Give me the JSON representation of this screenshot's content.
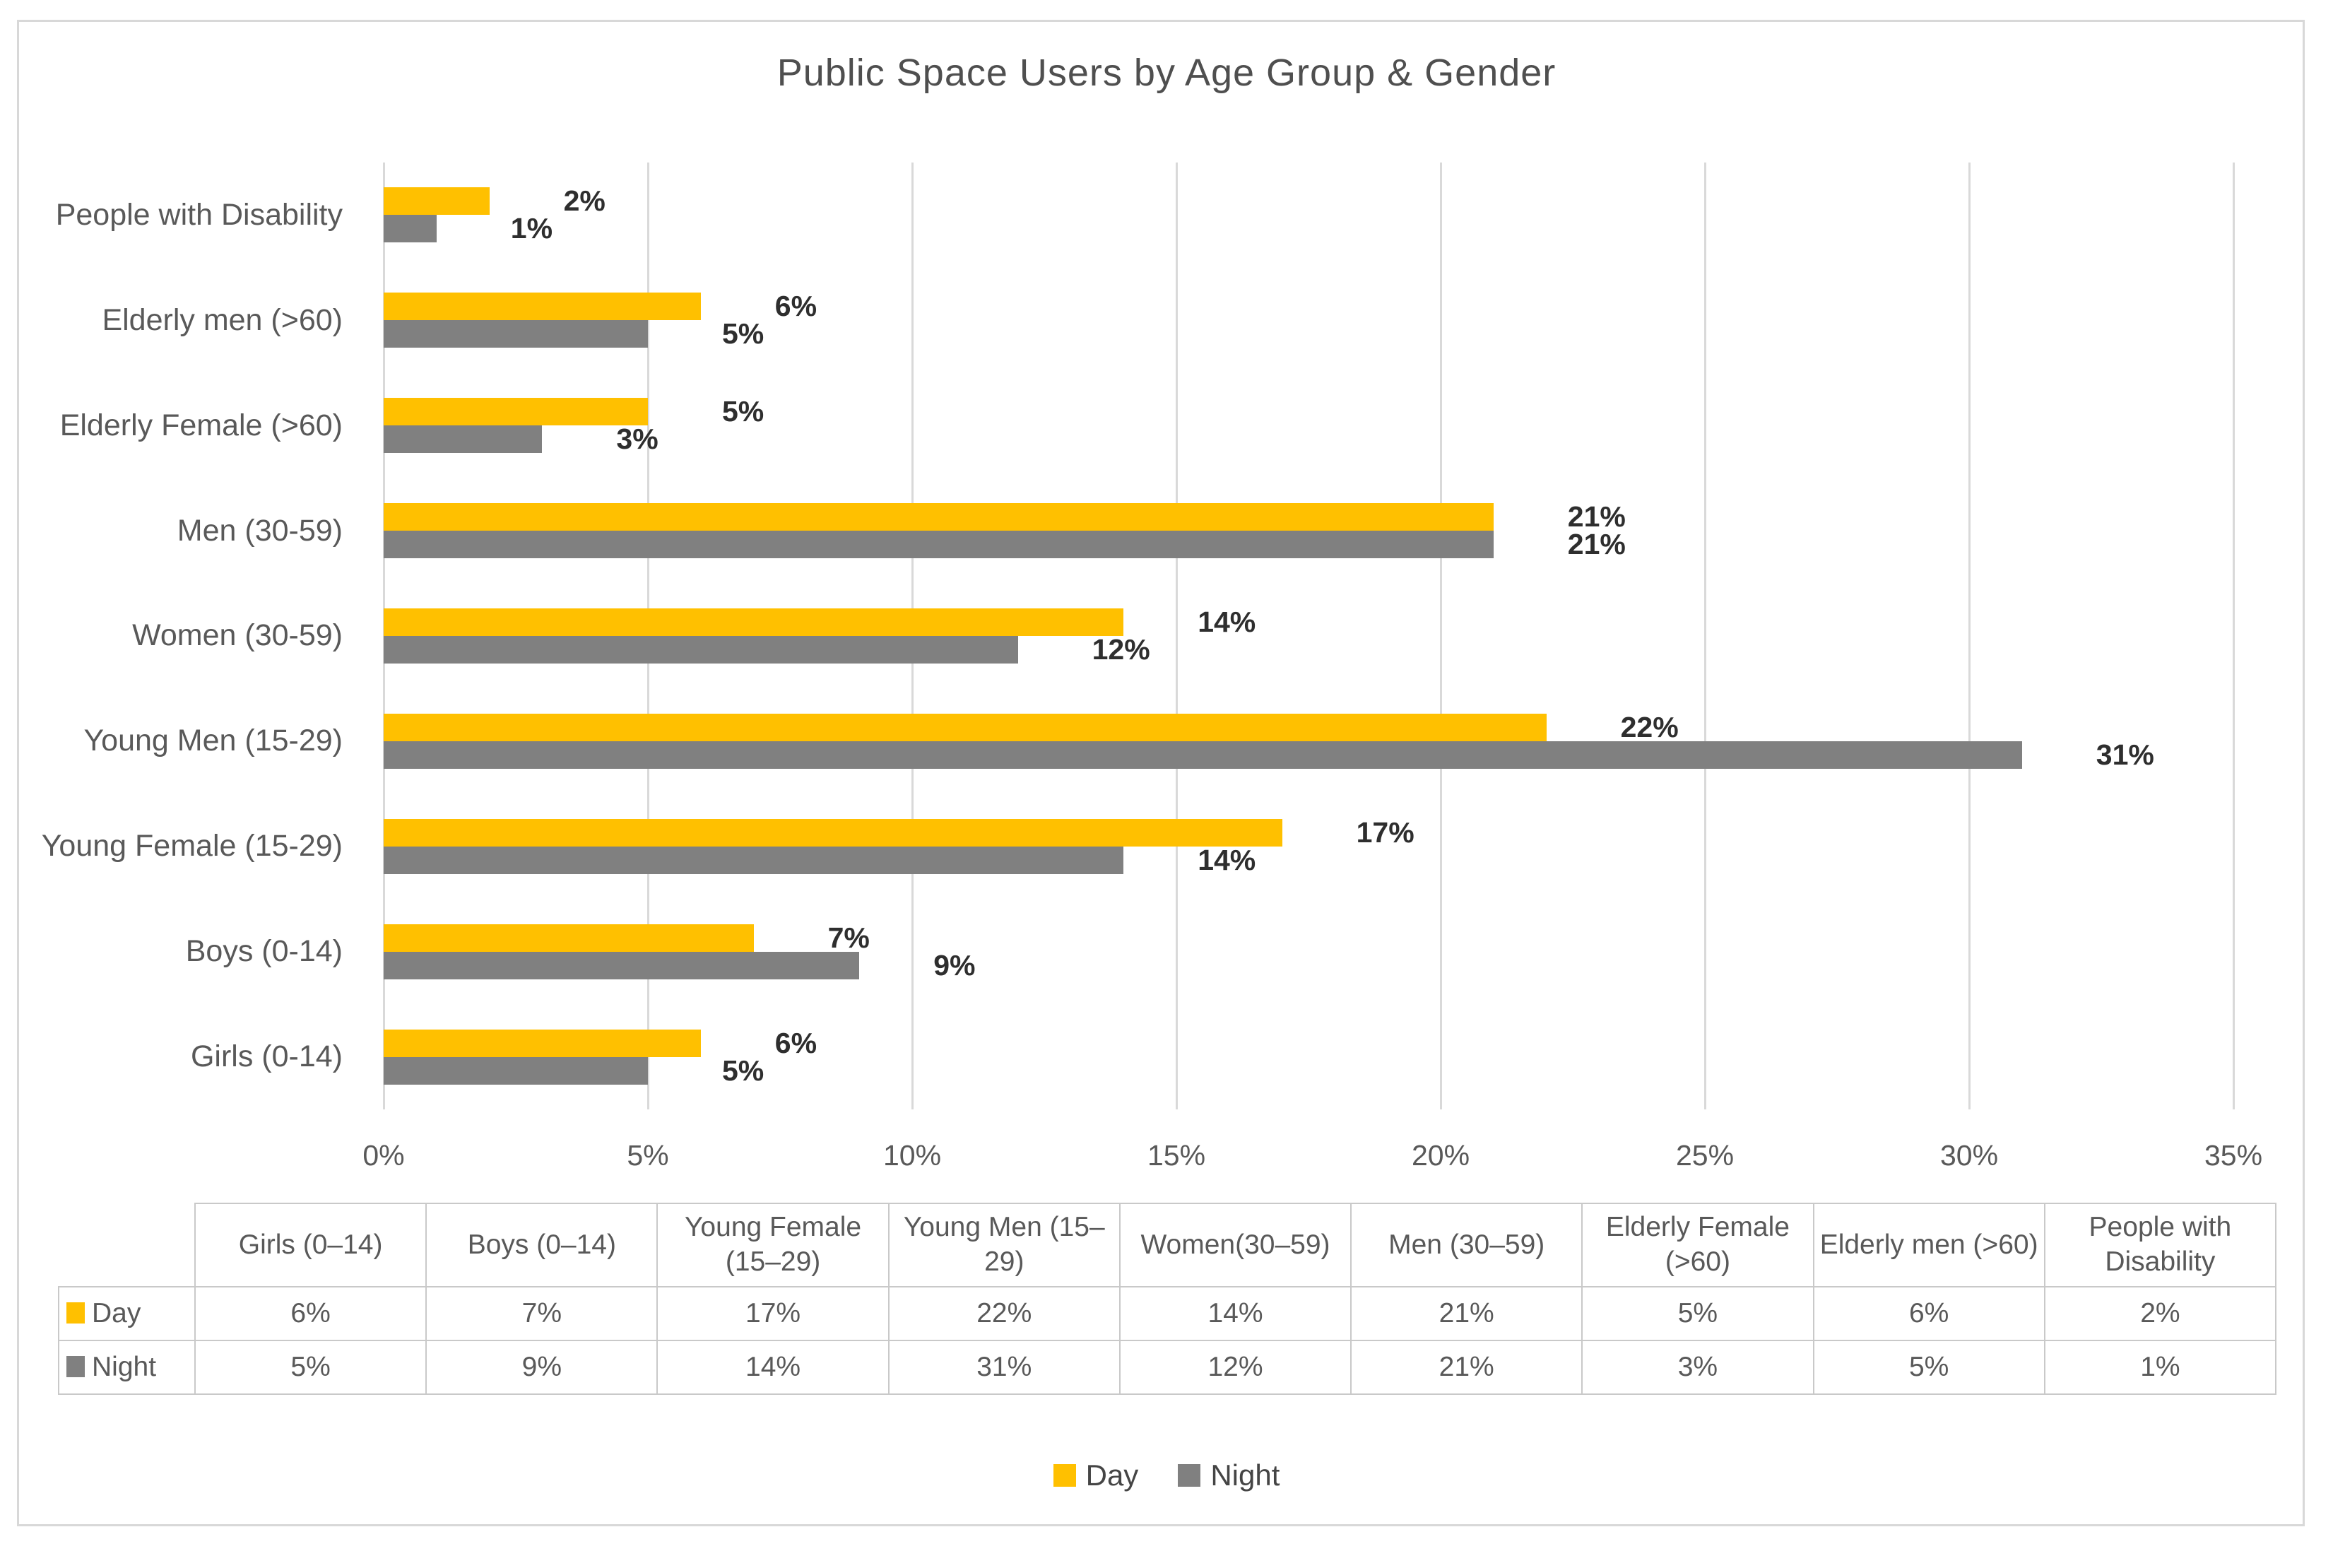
{
  "title": "Public Space Users by Age Group & Gender",
  "colors": {
    "day": "#FFC000",
    "night": "#808080",
    "grid": "#D9D9D9",
    "axis_text": "#595959",
    "value_label_text": "#2E2E2E",
    "frame_border": "#D8D8D8",
    "table_border": "#C9C9C9"
  },
  "chart_data": {
    "type": "bar",
    "orientation": "horizontal",
    "title": "Public Space Users by Age Group & Gender",
    "categories_top_to_bottom": [
      "People with Disability",
      "Elderly men (>60)",
      "Elderly Female (>60)",
      "Men (30-59)",
      "Women (30-59)",
      "Young Men (15-29)",
      "Young Female (15-29)",
      "Boys (0-14)",
      "Girls (0-14)"
    ],
    "series": [
      {
        "name": "Day",
        "color": "#FFC000",
        "values": [
          2,
          6,
          5,
          21,
          14,
          22,
          17,
          7,
          6
        ]
      },
      {
        "name": "Night",
        "color": "#808080",
        "values": [
          1,
          5,
          3,
          21,
          12,
          31,
          14,
          9,
          5
        ]
      }
    ],
    "value_suffix": "%",
    "xlim": [
      0,
      35
    ],
    "x_ticks": [
      "0%",
      "5%",
      "10%",
      "15%",
      "20%",
      "25%",
      "30%",
      "35%"
    ],
    "grid": "vertical",
    "legend_position": "bottom"
  },
  "data_table": {
    "columns": [
      "Girls (0–14)",
      "Boys (0–14)",
      "Young Female (15–29)",
      "Young Men (15–29)",
      "Women(30–59)",
      "Men (30–59)",
      "Elderly Female (>60)",
      "Elderly men (>60)",
      "People with Disability"
    ],
    "rows": [
      {
        "label": "Day",
        "swatch": "#FFC000",
        "values": [
          "6%",
          "7%",
          "17%",
          "22%",
          "14%",
          "21%",
          "5%",
          "6%",
          "2%"
        ]
      },
      {
        "label": "Night",
        "swatch": "#808080",
        "values": [
          "5%",
          "9%",
          "14%",
          "31%",
          "12%",
          "21%",
          "3%",
          "5%",
          "1%"
        ]
      }
    ]
  },
  "legend": {
    "items": [
      {
        "label": "Day",
        "color": "#FFC000"
      },
      {
        "label": "Night",
        "color": "#808080"
      }
    ]
  }
}
